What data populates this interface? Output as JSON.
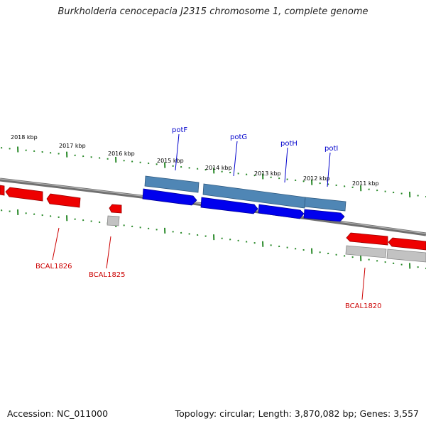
{
  "title": "Burkholderia cenocepacia J2315 chromosome 1, complete genome",
  "footer": {
    "accession": "Accession: NC_011000",
    "topology": "Topology: circular; Length: 3,870,082 bp; Genes: 3,557"
  },
  "colors": {
    "forward_gene": "#0000ff",
    "forward_gene_light": "#3b3bff",
    "reverse_gene": "#ff0000",
    "reverse_gene_light": "#ff5a5a",
    "forward_cds_track": "#4f86b5",
    "reverse_cds_track": "#bdbdbd",
    "backbone": "#8a8a8a",
    "tick_marks": "#2a8a2a",
    "forward_label": "#0000cc",
    "reverse_label": "#cc0000",
    "kbp_label": "#000000"
  },
  "kbp_labels": [
    "2018 kbp",
    "2017 kbp",
    "2016 kbp",
    "2015 kbp",
    "2014 kbp",
    "2013 kbp",
    "2012 kbp",
    "2011 kbp"
  ],
  "forward_genes": [
    "potF",
    "potG",
    "potH",
    "potI"
  ],
  "reverse_genes": [
    "BCAL1826",
    "BCAL1825",
    "BCAL1820"
  ]
}
